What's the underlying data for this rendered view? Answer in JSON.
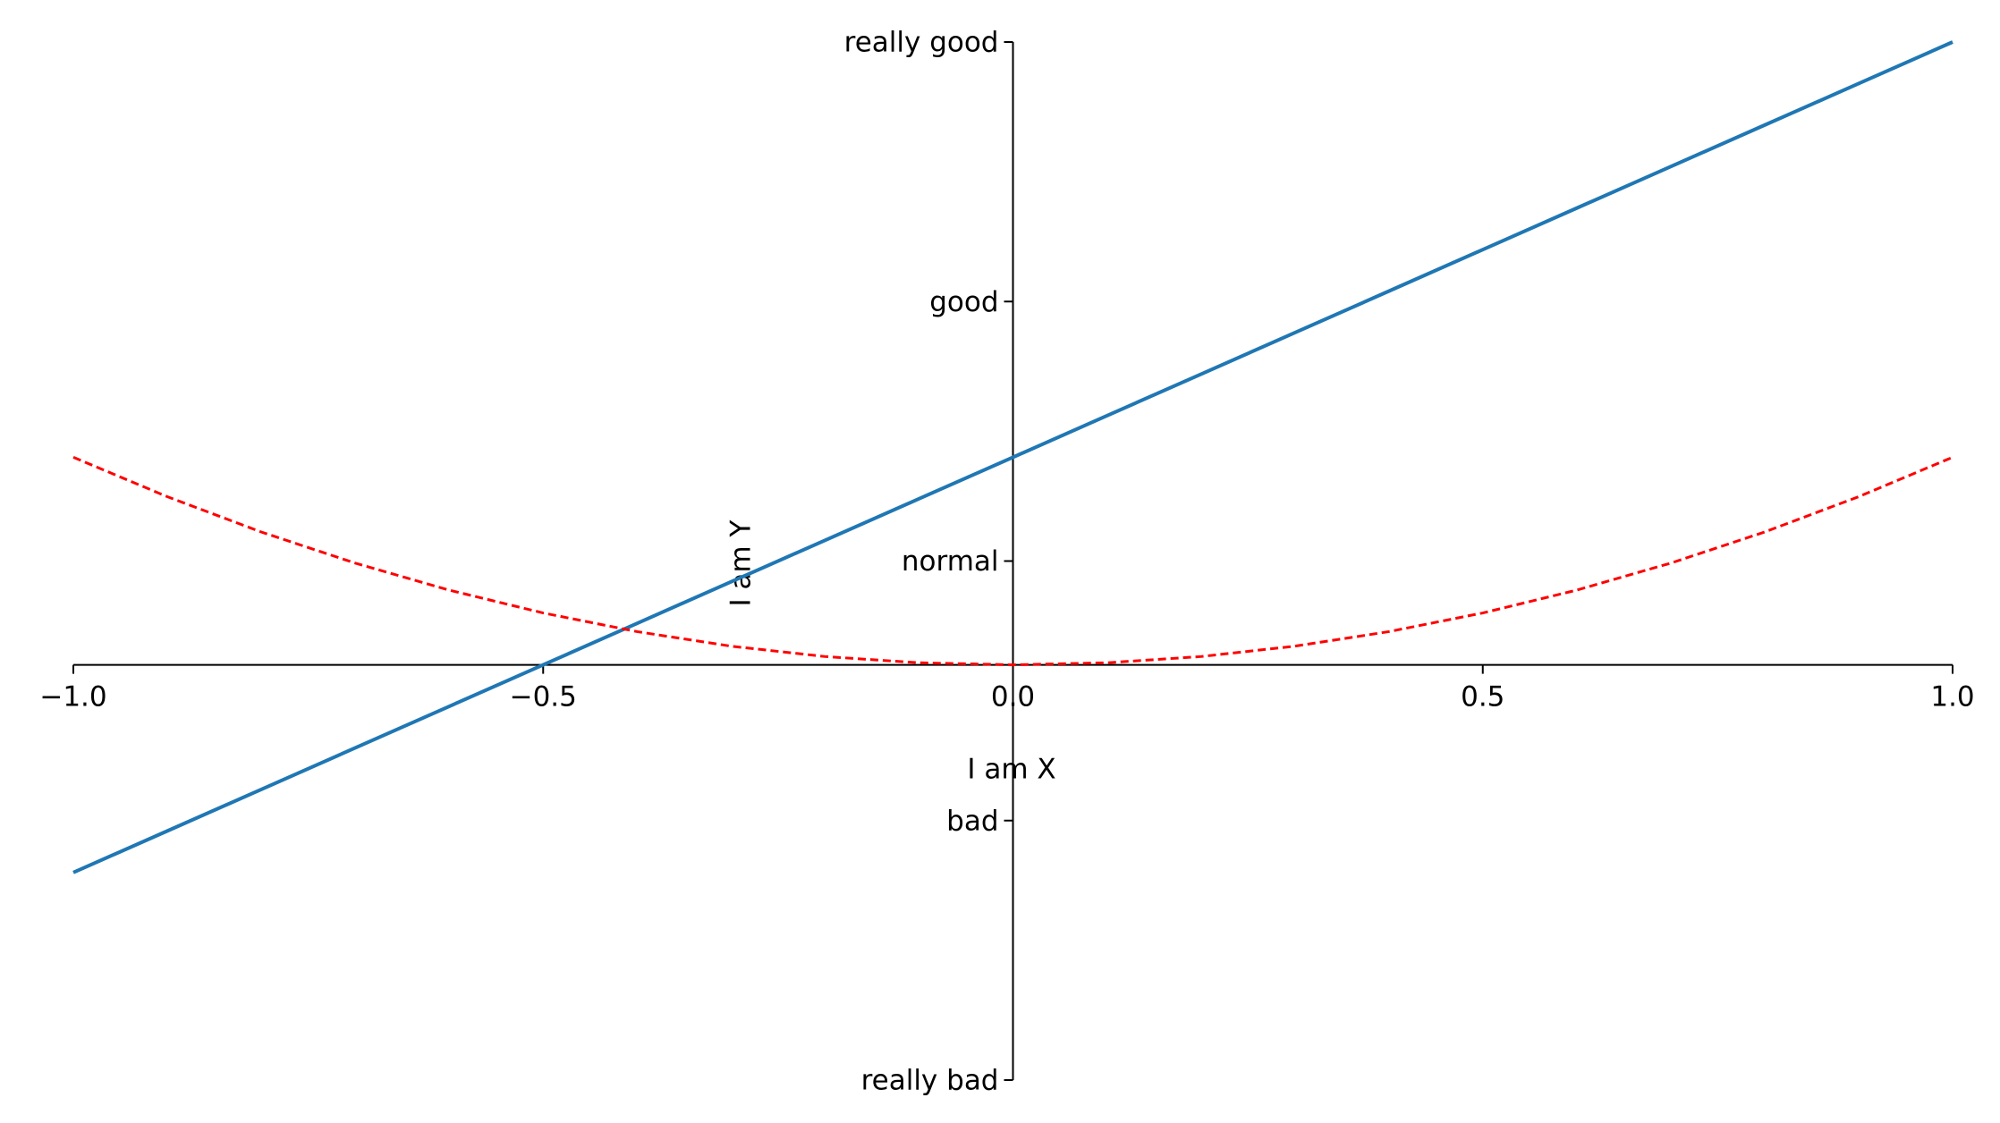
{
  "chart_data": {
    "type": "line",
    "xlabel": "I am X",
    "ylabel": "I am Y",
    "x": [
      -1,
      -0.9,
      -0.8,
      -0.7,
      -0.6,
      -0.5,
      -0.4,
      -0.3,
      -0.2,
      -0.1,
      0,
      0.1,
      0.2,
      0.3,
      0.4,
      0.5,
      0.6,
      0.7,
      0.8,
      0.9,
      1
    ],
    "series": [
      {
        "color": "#1f77b4",
        "style": "solid",
        "values": [
          -1,
          -0.8,
          -0.6,
          -0.4,
          -0.2,
          0,
          0.2,
          0.4,
          0.6,
          0.8,
          1,
          1.2,
          1.4,
          1.6,
          1.8,
          2,
          2.2,
          2.4,
          2.6,
          2.8,
          3
        ]
      },
      {
        "color": "#ff0000",
        "style": "dashed",
        "values": [
          1,
          0.81,
          0.64,
          0.49,
          0.36,
          0.25,
          0.16,
          0.09,
          0.04,
          0.01,
          0,
          0.01,
          0.04,
          0.09,
          0.16,
          0.25,
          0.36,
          0.49,
          0.64,
          0.81,
          1
        ]
      }
    ],
    "xlim": [
      -1,
      1
    ],
    "xticks": [
      {
        "value": -1,
        "label": "−1.0"
      },
      {
        "value": -0.5,
        "label": "−0.5"
      },
      {
        "value": 0,
        "label": "0.0"
      },
      {
        "value": 0.5,
        "label": "0.5"
      },
      {
        "value": 1,
        "label": "1.0"
      }
    ],
    "ylim": [
      -2,
      3
    ],
    "yticks": [
      {
        "value": -2,
        "label": "really bad"
      },
      {
        "value": -0.75,
        "label": "bad"
      },
      {
        "value": 0.5,
        "label": "normal"
      },
      {
        "value": 1.75,
        "label": "good"
      },
      {
        "value": 3,
        "label": "really good"
      }
    ],
    "grid": false
  }
}
